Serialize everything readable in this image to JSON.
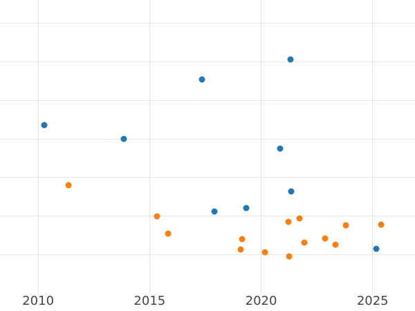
{
  "chart_data": {
    "type": "scatter",
    "title": "",
    "xlabel": "",
    "ylabel": "",
    "x_ticks": [
      2010,
      2015,
      2020,
      2025
    ],
    "x_tick_labels": [
      "2010",
      "2015",
      "2020",
      "2025"
    ],
    "x_range": [
      2008.29,
      2026.9
    ],
    "y_range": [
      -0.99,
      6.6
    ],
    "y_gridlines": [
      0,
      1,
      2,
      3,
      4,
      5,
      6
    ],
    "y_axis_note": "y-axis tick labels are not visible (cropped left edge); y values are in gridline units above the lowest visible gridline",
    "grid": true,
    "legend_position": "none",
    "background_color": "#ffffff",
    "grid_color": "#e5e5e5",
    "tick_label_color": "#444444",
    "series": [
      {
        "name": "blue",
        "color": "#1f77b4",
        "points": [
          {
            "x": 2010.29,
            "y": 3.36
          },
          {
            "x": 2013.84,
            "y": 3.0
          },
          {
            "x": 2017.36,
            "y": 4.54
          },
          {
            "x": 2017.9,
            "y": 1.13
          },
          {
            "x": 2019.33,
            "y": 1.21
          },
          {
            "x": 2020.84,
            "y": 2.75
          },
          {
            "x": 2021.32,
            "y": 5.06
          },
          {
            "x": 2021.35,
            "y": 1.65
          },
          {
            "x": 2025.15,
            "y": 0.16
          }
        ]
      },
      {
        "name": "orange",
        "color": "#ff7f0e",
        "points": [
          {
            "x": 2011.36,
            "y": 1.8
          },
          {
            "x": 2015.33,
            "y": 1.0
          },
          {
            "x": 2015.84,
            "y": 0.55
          },
          {
            "x": 2019.07,
            "y": 0.14
          },
          {
            "x": 2019.15,
            "y": 0.4
          },
          {
            "x": 2020.17,
            "y": 0.07
          },
          {
            "x": 2021.22,
            "y": 0.85
          },
          {
            "x": 2021.27,
            "y": -0.05
          },
          {
            "x": 2021.73,
            "y": 0.95
          },
          {
            "x": 2021.93,
            "y": 0.32
          },
          {
            "x": 2022.87,
            "y": 0.42
          },
          {
            "x": 2023.34,
            "y": 0.26
          },
          {
            "x": 2023.79,
            "y": 0.76
          },
          {
            "x": 2025.37,
            "y": 0.79
          }
        ]
      }
    ]
  }
}
